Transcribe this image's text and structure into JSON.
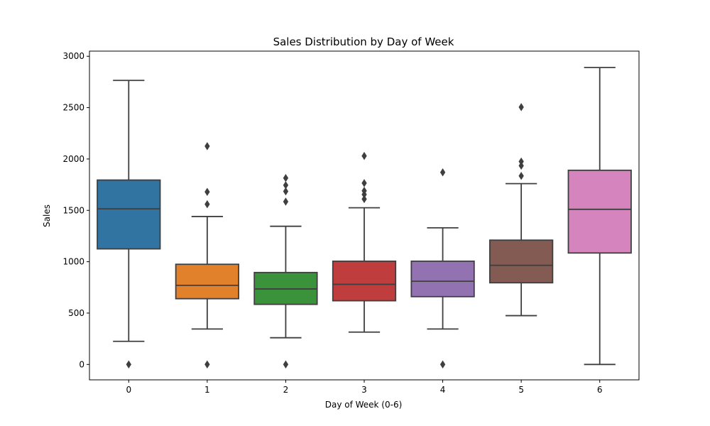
{
  "chart_data": {
    "type": "box",
    "title": "Sales Distribution by Day of Week",
    "xlabel": "Day of Week (0-6)",
    "ylabel": "Sales",
    "ylim": [
      -150,
      3050
    ],
    "yticks": [
      0,
      500,
      1000,
      1500,
      2000,
      2500,
      3000
    ],
    "grid": false,
    "legend": "none",
    "categories": [
      "0",
      "1",
      "2",
      "3",
      "4",
      "5",
      "6"
    ],
    "boxes": [
      {
        "category": "0",
        "color": "#3274a1",
        "whisker_low": 225,
        "q1": 1125,
        "median": 1515,
        "q3": 1795,
        "whisker_high": 2765,
        "outliers": [
          0
        ]
      },
      {
        "category": "1",
        "color": "#e1812c",
        "whisker_low": 345,
        "q1": 640,
        "median": 770,
        "q3": 975,
        "whisker_high": 1440,
        "outliers": [
          0,
          1560,
          1680,
          2125
        ]
      },
      {
        "category": "2",
        "color": "#3a923a",
        "whisker_low": 260,
        "q1": 585,
        "median": 735,
        "q3": 895,
        "whisker_high": 1345,
        "outliers": [
          0,
          1585,
          1685,
          1745,
          1815
        ]
      },
      {
        "category": "3",
        "color": "#c03d3e",
        "whisker_low": 315,
        "q1": 620,
        "median": 780,
        "q3": 1005,
        "whisker_high": 1525,
        "outliers": [
          1610,
          1655,
          1690,
          1765,
          2030
        ]
      },
      {
        "category": "4",
        "color": "#9372b2",
        "whisker_low": 345,
        "q1": 660,
        "median": 810,
        "q3": 1005,
        "whisker_high": 1330,
        "outliers": [
          0,
          1870
        ]
      },
      {
        "category": "5",
        "color": "#845b53",
        "whisker_low": 475,
        "q1": 795,
        "median": 965,
        "q3": 1210,
        "whisker_high": 1760,
        "outliers": [
          1835,
          1935,
          1975,
          2505
        ]
      },
      {
        "category": "6",
        "color": "#d684bd",
        "whisker_low": 0,
        "q1": 1085,
        "median": 1510,
        "q3": 1890,
        "whisker_high": 2890,
        "outliers": []
      }
    ]
  }
}
